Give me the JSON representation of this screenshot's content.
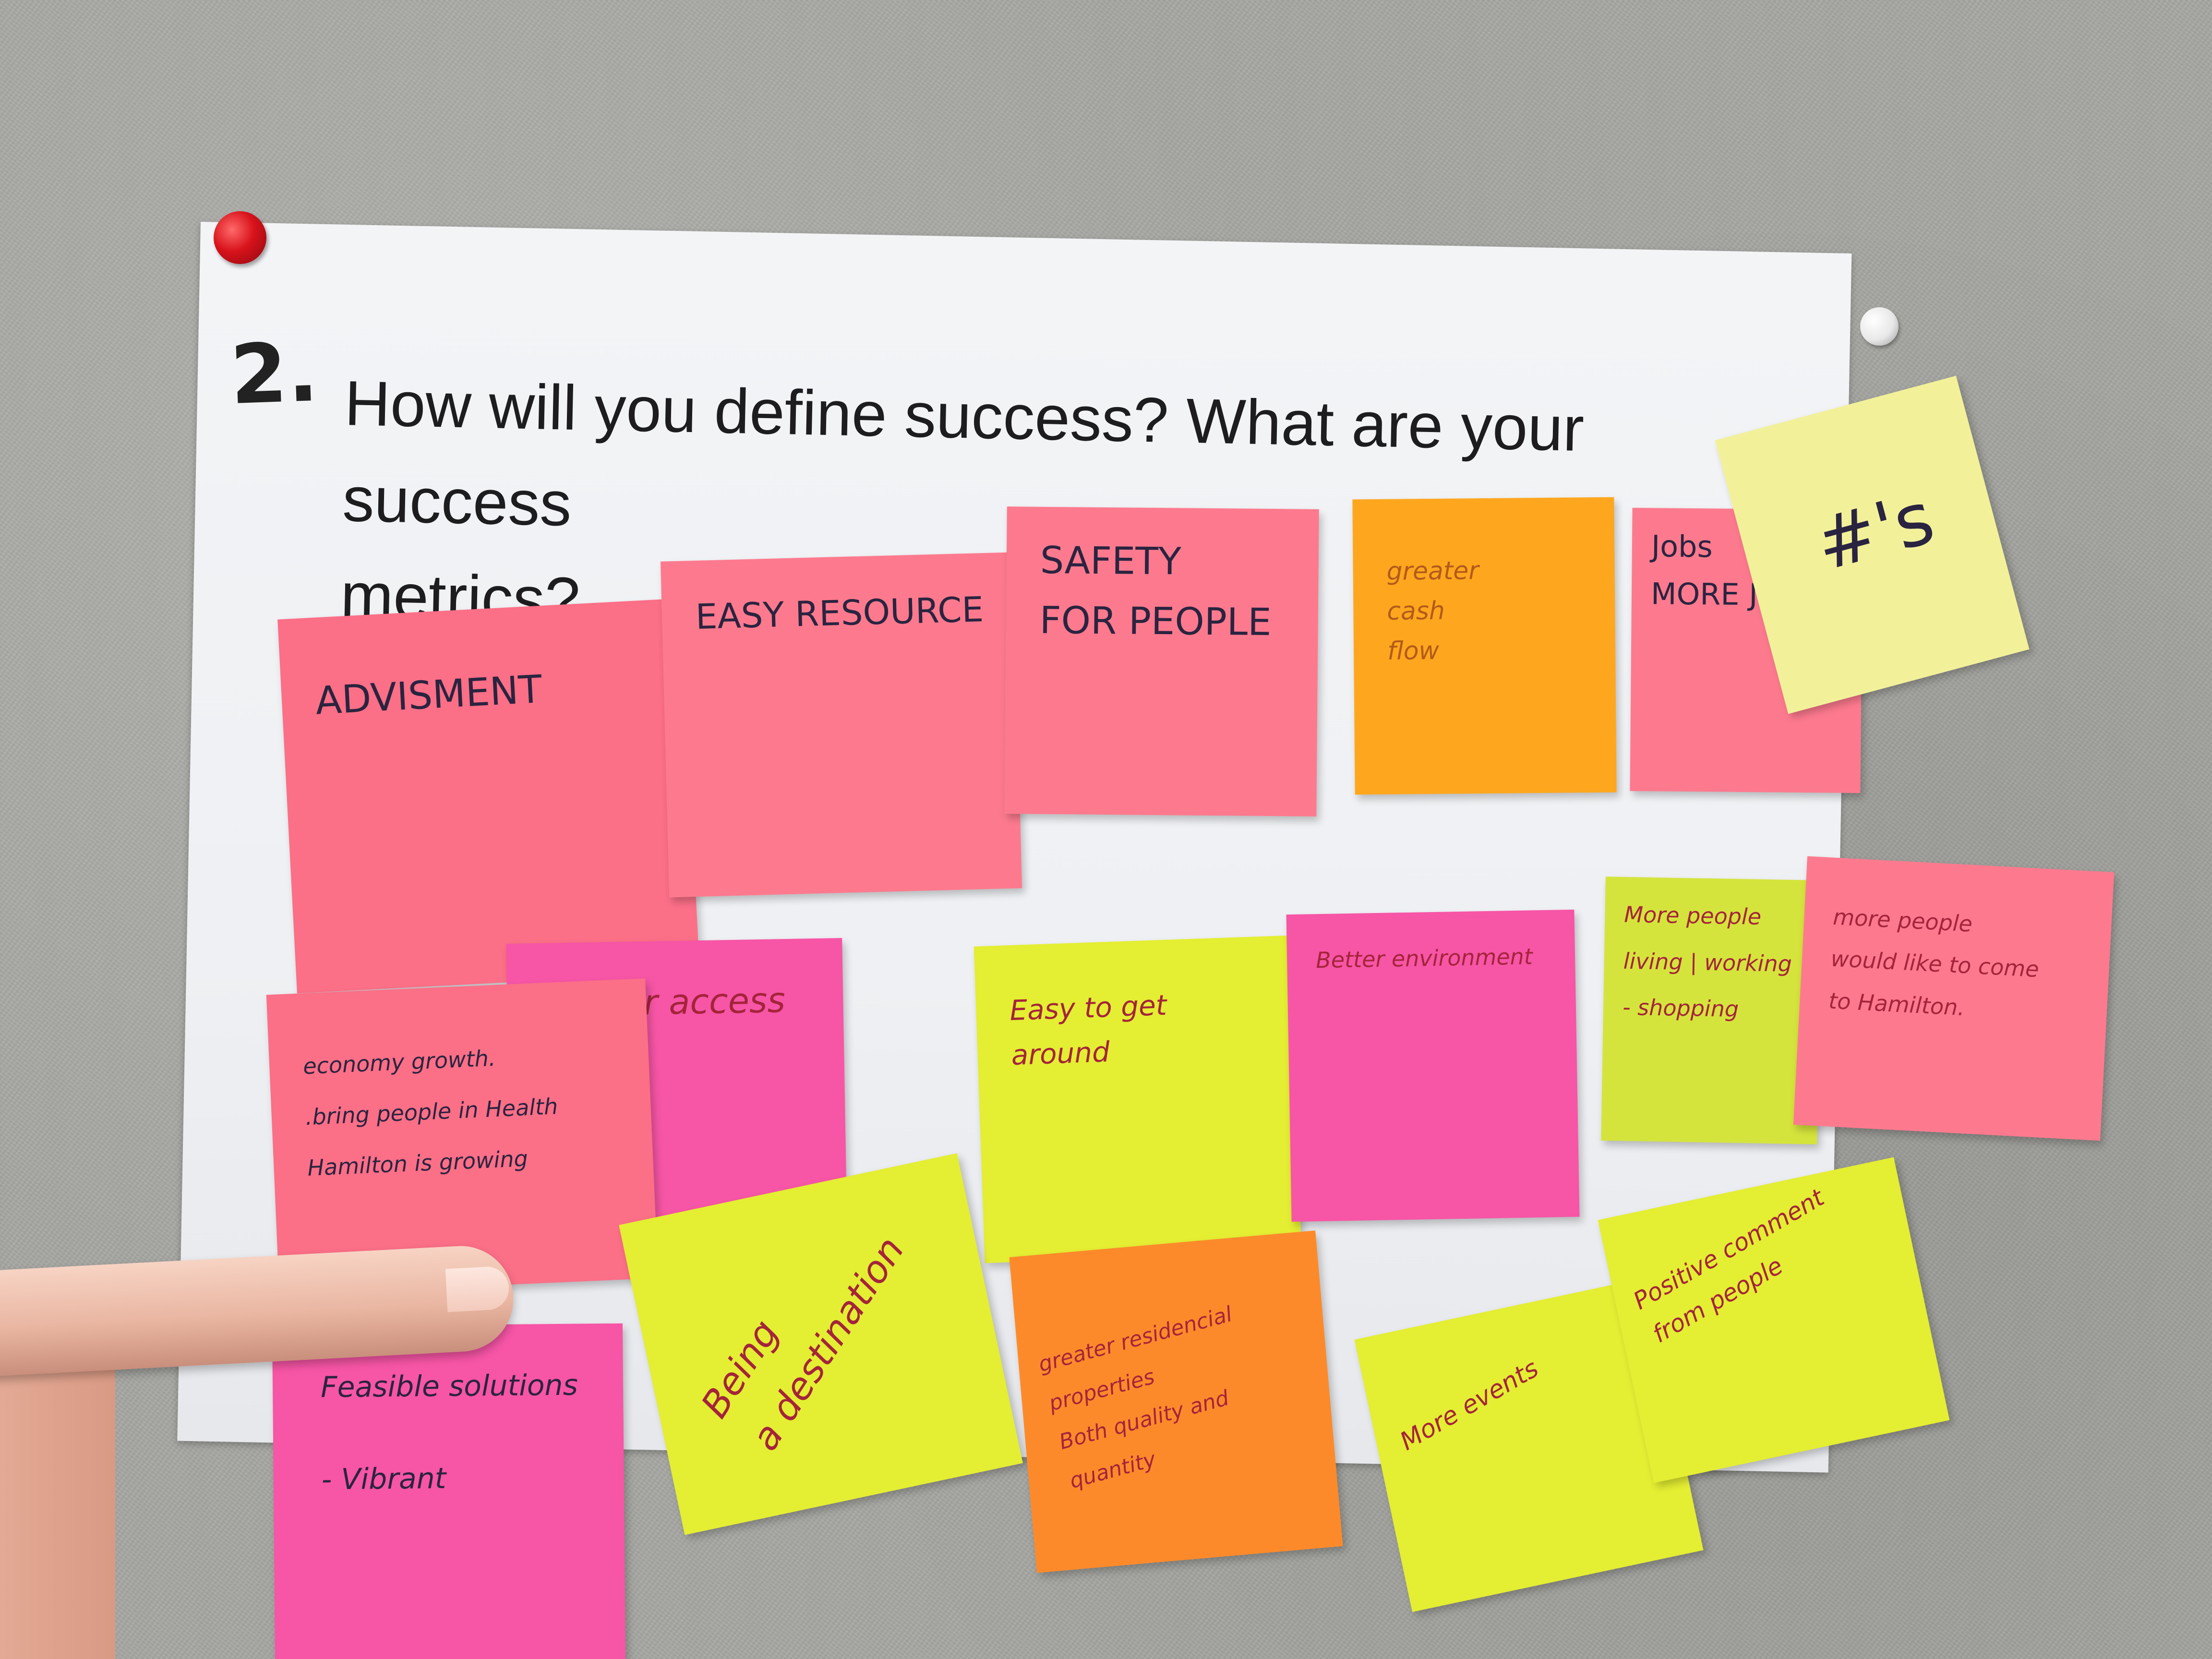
{
  "poster": {
    "number": "2.",
    "question": "How will you define success?  What are your success\nmetrics?"
  },
  "notes": [
    {
      "id": "advisment",
      "text": "ADVISMENT"
    },
    {
      "id": "easy-resource",
      "text": "EASY RESOURCE"
    },
    {
      "id": "safety",
      "text": "SAFETY\n     FOR PEOPLE"
    },
    {
      "id": "cash-flow",
      "text": "greater\n        cash\n              flow"
    },
    {
      "id": "jobs",
      "text": "Jobs\nMORE Jo"
    },
    {
      "id": "numbers",
      "text": "#'s"
    },
    {
      "id": "access",
      "text": "er access"
    },
    {
      "id": "economy",
      "text": "economy growth.\n.bring people in Health\nHamilton is growing"
    },
    {
      "id": "easy-around",
      "text": "Easy to get\naround"
    },
    {
      "id": "environment",
      "text": "Better environment"
    },
    {
      "id": "living",
      "text": "More people\nliving | working\n- shopping"
    },
    {
      "id": "come-hamilton",
      "text": "more people\nwould like to come\nto Hamilton."
    },
    {
      "id": "feasible",
      "text": "Feasible solutions\n\n- Vibrant"
    },
    {
      "id": "destination",
      "text": "Being\na destination"
    },
    {
      "id": "residential",
      "text": "greater residencial\nproperties\nBoth quality and\nquantity"
    },
    {
      "id": "events",
      "text": "More events"
    },
    {
      "id": "positive",
      "text": "Positive comment\nfrom people"
    }
  ]
}
